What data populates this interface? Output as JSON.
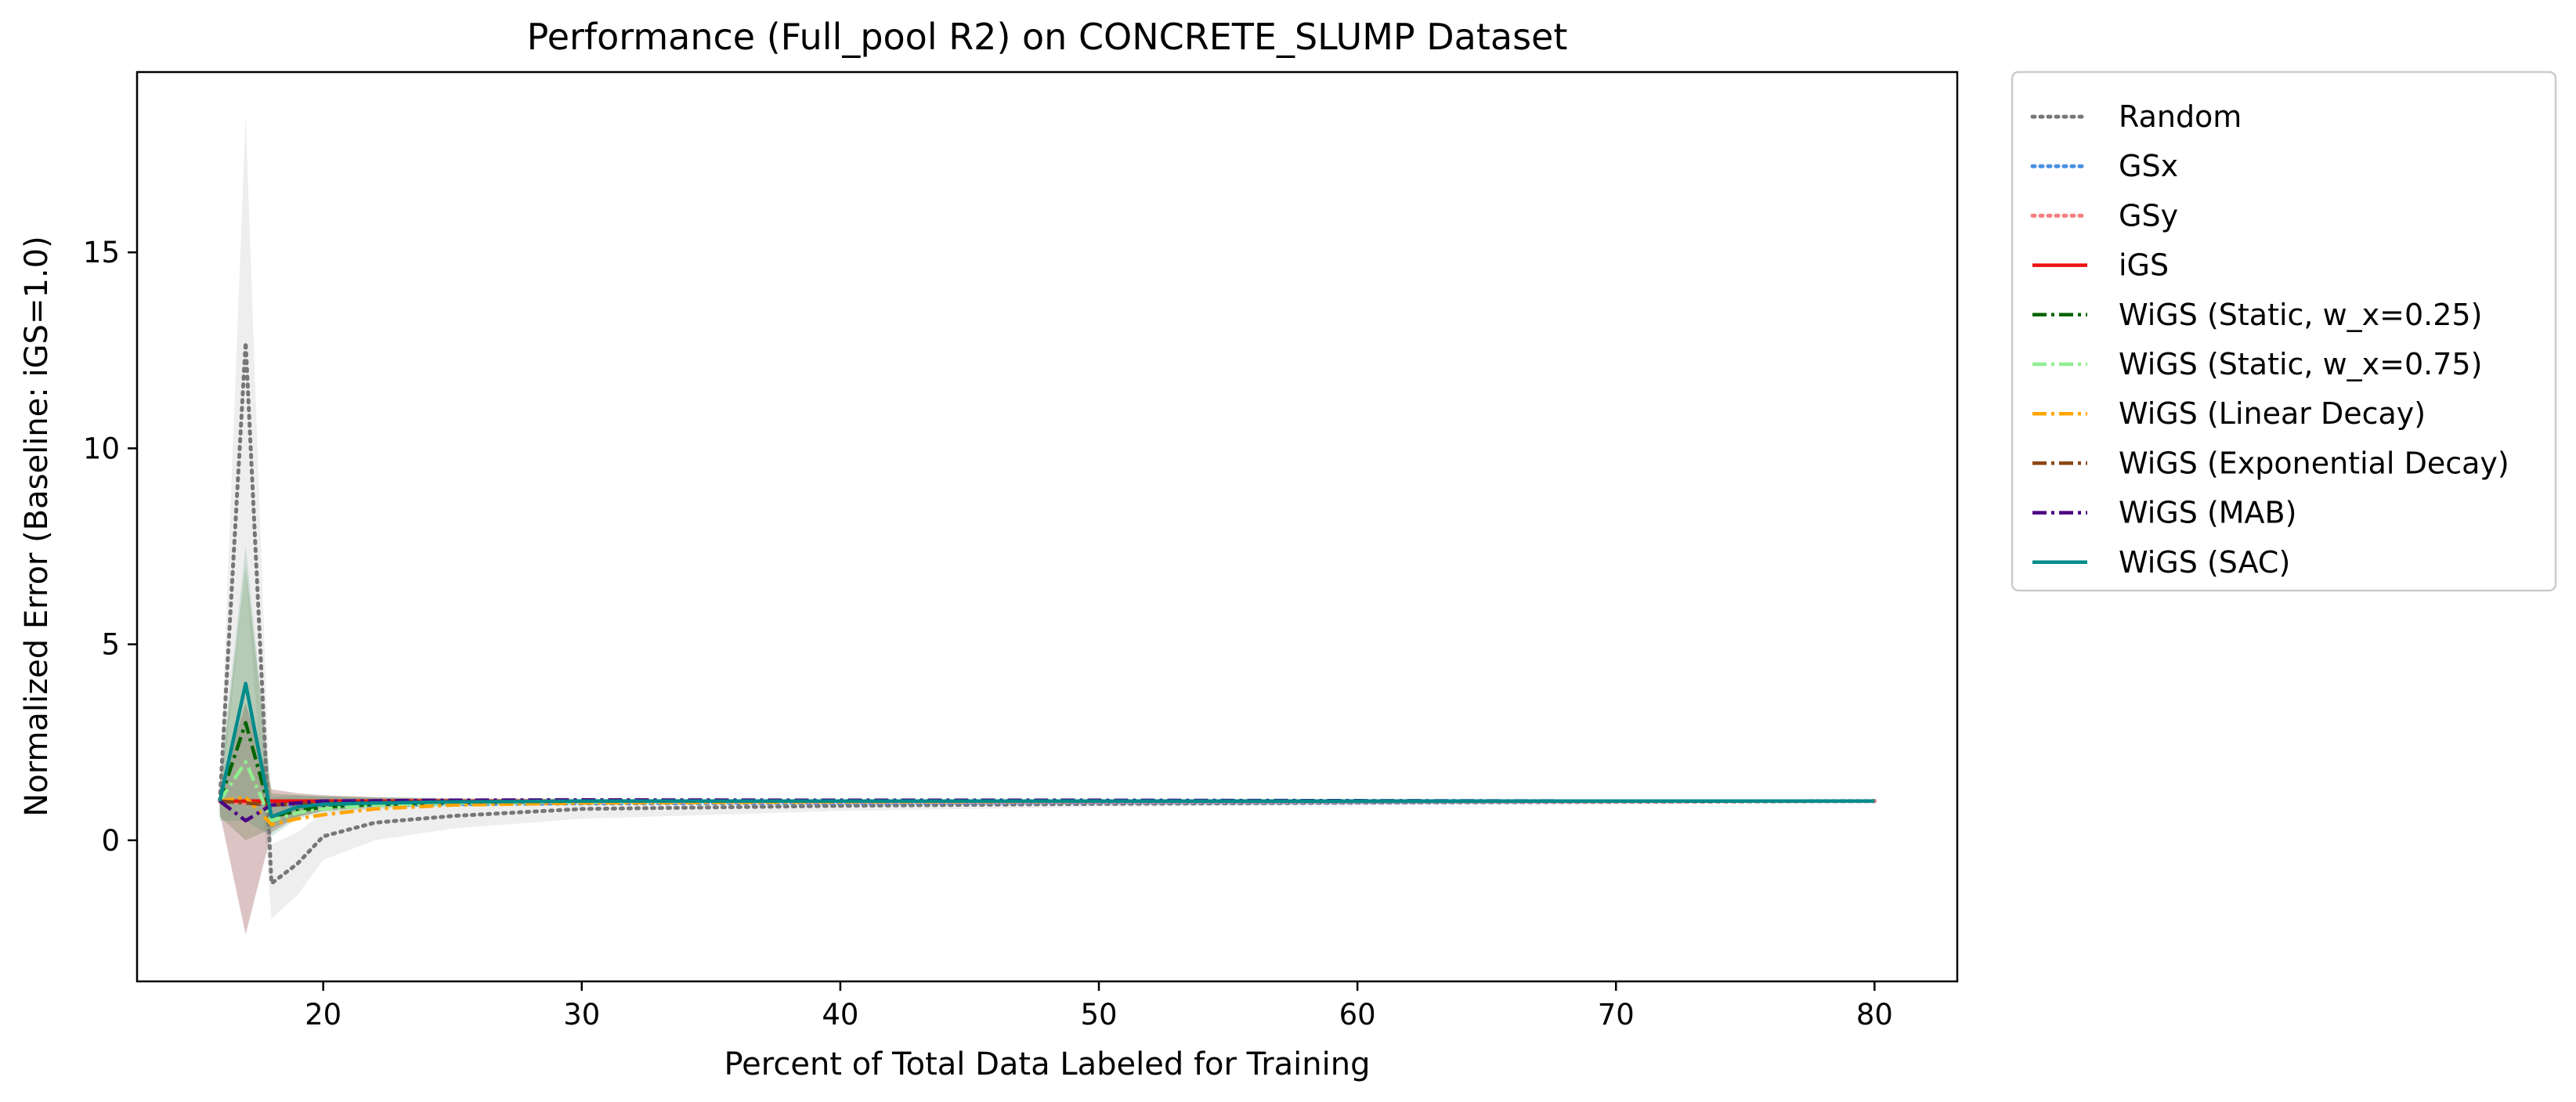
{
  "chart_data": {
    "type": "line",
    "title": "Performance (Full_pool R2) on CONCRETE_SLUMP Dataset",
    "xlabel": "Percent of Total Data Labeled for Training",
    "ylabel": "Normalized Error (Baseline: iGS=1.0)",
    "xlim": [
      12.8,
      83.2
    ],
    "ylim": [
      -3.6,
      19.6
    ],
    "xticks": [
      20,
      30,
      40,
      50,
      60,
      70,
      80
    ],
    "yticks": [
      0,
      5,
      10,
      15
    ],
    "grid": false,
    "legend_position": "outside right",
    "series": [
      {
        "name": "Random",
        "color": "#777777",
        "style": "dotted",
        "x": [
          16,
          17,
          18,
          19,
          20,
          22,
          25,
          30,
          40,
          50,
          60,
          70,
          80
        ],
        "y": [
          1.0,
          12.7,
          -1.1,
          -0.6,
          0.1,
          0.45,
          0.62,
          0.8,
          0.88,
          0.93,
          0.96,
          0.98,
          1.0
        ],
        "band": [
          [
            0.6,
            1.4
          ],
          [
            7.0,
            18.5
          ],
          [
            -2.0,
            -0.1
          ],
          [
            -1.4,
            0.2
          ],
          [
            -0.5,
            0.7
          ],
          [
            0.0,
            0.9
          ],
          [
            0.3,
            0.95
          ],
          [
            0.55,
            1.0
          ],
          [
            0.75,
            1.0
          ],
          [
            0.85,
            1.0
          ],
          [
            0.9,
            1.02
          ],
          [
            0.95,
            1.02
          ],
          [
            0.98,
            1.02
          ]
        ]
      },
      {
        "name": "GSx",
        "color": "#4A90E2",
        "style": "dotted",
        "x": [
          16,
          17,
          18,
          20,
          25,
          30,
          40,
          50,
          60,
          70,
          80
        ],
        "y": [
          1.0,
          0.95,
          0.9,
          0.9,
          0.92,
          0.94,
          0.95,
          0.96,
          0.97,
          0.99,
          1.0
        ]
      },
      {
        "name": "GSy",
        "color": "#F28080",
        "style": "dotted",
        "x": [
          16,
          17,
          18,
          20,
          25,
          30,
          40,
          50,
          60,
          70,
          80
        ],
        "y": [
          1.0,
          0.95,
          0.95,
          0.95,
          0.96,
          0.97,
          0.98,
          0.98,
          0.99,
          0.99,
          1.0
        ]
      },
      {
        "name": "iGS",
        "color": "#EE1111",
        "style": "solid",
        "x": [
          16,
          17,
          18,
          20,
          25,
          30,
          40,
          50,
          60,
          70,
          80
        ],
        "y": [
          1.0,
          1.0,
          1.0,
          1.0,
          1.0,
          1.0,
          1.0,
          1.0,
          1.0,
          1.0,
          1.0
        ]
      },
      {
        "name": "WiGS (Static, w_x=0.25)",
        "color": "#006400",
        "style": "dashdot",
        "x": [
          16,
          17,
          18,
          19,
          20,
          22,
          25,
          30,
          40,
          50,
          60,
          70,
          80
        ],
        "y": [
          1.0,
          3.0,
          0.6,
          0.75,
          0.85,
          0.92,
          0.96,
          1.0,
          1.0,
          1.0,
          1.0,
          1.0,
          1.0
        ]
      },
      {
        "name": "WiGS (Static, w_x=0.75)",
        "color": "#90EE90",
        "style": "dashdot",
        "x": [
          16,
          17,
          18,
          19,
          20,
          22,
          25,
          30,
          40,
          50,
          60,
          70,
          80
        ],
        "y": [
          1.0,
          2.0,
          0.5,
          0.7,
          0.8,
          0.9,
          0.95,
          0.98,
          1.0,
          1.0,
          1.0,
          1.0,
          1.0
        ]
      },
      {
        "name": "WiGS (Linear Decay)",
        "color": "#FFA500",
        "style": "dashdot",
        "x": [
          16,
          17,
          18,
          19,
          20,
          22,
          25,
          30,
          40,
          50,
          60,
          70,
          80
        ],
        "y": [
          1.0,
          1.1,
          0.4,
          0.55,
          0.65,
          0.8,
          0.9,
          0.95,
          0.98,
          1.0,
          1.0,
          1.0,
          1.0
        ]
      },
      {
        "name": "WiGS (Exponential Decay)",
        "color": "#8B4513",
        "style": "dashdot",
        "x": [
          16,
          17,
          18,
          20,
          25,
          30,
          40,
          50,
          60,
          70,
          80
        ],
        "y": [
          1.0,
          0.95,
          0.9,
          0.95,
          0.98,
          1.0,
          1.0,
          1.0,
          1.0,
          1.0,
          1.0
        ]
      },
      {
        "name": "WiGS (MAB)",
        "color": "#4B0082",
        "style": "dashdot",
        "x": [
          16,
          17,
          18,
          20,
          25,
          30,
          40,
          50,
          60,
          70,
          80
        ],
        "y": [
          1.0,
          0.5,
          0.9,
          1.0,
          1.02,
          1.03,
          1.02,
          1.02,
          1.01,
          1.0,
          1.0
        ]
      },
      {
        "name": "WiGS (SAC)",
        "color": "#008B8B",
        "style": "solid",
        "x": [
          16,
          17,
          18,
          19,
          20,
          22,
          25,
          30,
          40,
          50,
          60,
          70,
          80
        ],
        "y": [
          1.0,
          4.0,
          0.6,
          0.85,
          0.92,
          0.95,
          0.98,
          1.0,
          1.0,
          1.0,
          1.0,
          1.0,
          1.0
        ],
        "band": [
          [
            0.5,
            1.5
          ],
          [
            0.5,
            7.5
          ],
          [
            0.1,
            1.1
          ],
          [
            0.55,
            1.15
          ],
          [
            0.7,
            1.12
          ],
          [
            0.8,
            1.1
          ],
          [
            0.88,
            1.08
          ],
          [
            0.93,
            1.06
          ],
          [
            0.96,
            1.04
          ],
          [
            0.98,
            1.02
          ],
          [
            0.98,
            1.02
          ],
          [
            0.99,
            1.01
          ],
          [
            0.99,
            1.01
          ]
        ]
      }
    ],
    "error_bands": [
      {
        "color": "#8B3A3A",
        "opacity": 0.3,
        "x": [
          16,
          17,
          18,
          19,
          20,
          22,
          25
        ],
        "low": [
          0.7,
          -2.4,
          0.2,
          0.6,
          0.75,
          0.85,
          0.92
        ],
        "high": [
          1.3,
          3.5,
          1.3,
          1.2,
          1.15,
          1.1,
          1.06
        ]
      },
      {
        "color": "#556B2F",
        "opacity": 0.25,
        "x": [
          16,
          17,
          18,
          19,
          20,
          22,
          25
        ],
        "low": [
          0.6,
          0.0,
          0.3,
          0.6,
          0.75,
          0.85,
          0.92
        ],
        "high": [
          1.4,
          7.0,
          1.2,
          1.15,
          1.12,
          1.08,
          1.05
        ]
      }
    ]
  }
}
